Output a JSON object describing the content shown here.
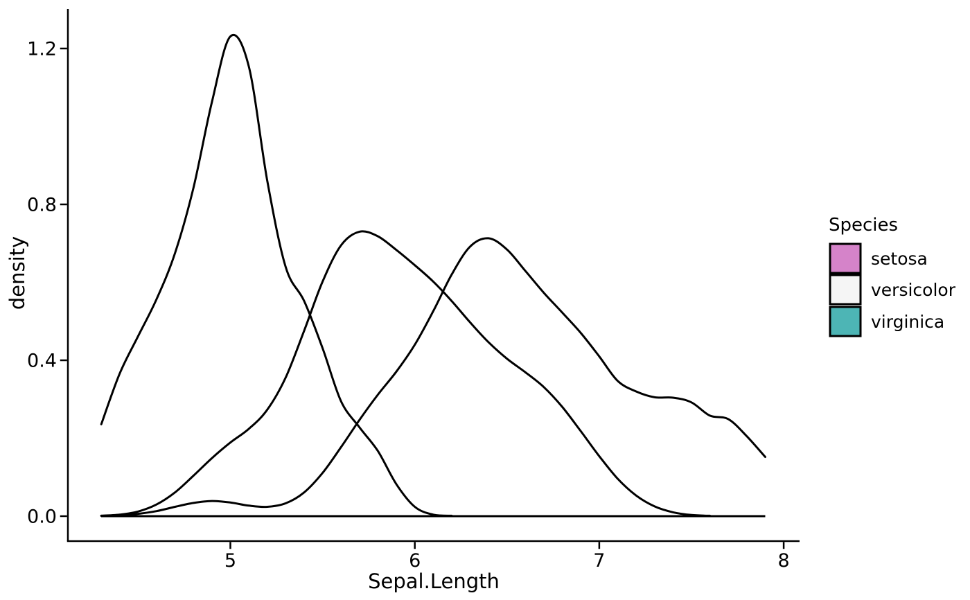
{
  "chart_data": {
    "type": "area",
    "subtype": "kernel-density",
    "title": "",
    "xlabel": "Sepal.Length",
    "ylabel": "density",
    "grid": "off",
    "background": "#ffffff",
    "axis_color": "#000000",
    "xlim": [
      4.119,
      8.086
    ],
    "ylim": [
      -0.064,
      1.301
    ],
    "x_ticks": [
      {
        "value": 5,
        "label": "5"
      },
      {
        "value": 6,
        "label": "6"
      },
      {
        "value": 7,
        "label": "7"
      },
      {
        "value": 8,
        "label": "8"
      }
    ],
    "y_ticks": [
      {
        "value": 0.0,
        "label": "0.0"
      },
      {
        "value": 0.4,
        "label": "0.4"
      },
      {
        "value": 0.8,
        "label": "0.8"
      },
      {
        "value": 1.2,
        "label": "1.2"
      }
    ],
    "outline": {
      "color": "#000000",
      "width": 3
    },
    "fill_alpha": 0.8,
    "legend": {
      "title": "Species",
      "position": "right",
      "entries": [
        {
          "label": "setosa",
          "color": "#D583C9"
        },
        {
          "label": "versicolor",
          "color": "#F5F5F5"
        },
        {
          "label": "virginica",
          "color": "#4DB5B5"
        }
      ]
    },
    "series": [
      {
        "name": "setosa",
        "fill": "rgba(202,100,188,0.8)",
        "x_start": 4.3,
        "x_step": 0.1,
        "densities": [
          0.236,
          0.366,
          0.462,
          0.557,
          0.675,
          0.843,
          1.063,
          1.231,
          1.154,
          0.861,
          0.639,
          0.552,
          0.431,
          0.295,
          0.228,
          0.167,
          0.082,
          0.024,
          0.004,
          0.001
        ]
      },
      {
        "name": "versicolor",
        "fill": "rgba(242,242,242,0.8)",
        "x_start": 4.3,
        "x_step": 0.1,
        "densities": [
          0.001,
          0.004,
          0.012,
          0.03,
          0.061,
          0.104,
          0.149,
          0.189,
          0.224,
          0.273,
          0.356,
          0.476,
          0.602,
          0.695,
          0.73,
          0.718,
          0.683,
          0.644,
          0.602,
          0.552,
          0.497,
          0.446,
          0.404,
          0.369,
          0.331,
          0.28,
          0.218,
          0.154,
          0.096,
          0.053,
          0.025,
          0.01,
          0.003,
          0.001
        ]
      },
      {
        "name": "virginica",
        "fill": "rgba(32,163,163,0.8)",
        "x_start": 4.3,
        "x_step": 0.1,
        "densities": [
          0.001,
          0.002,
          0.006,
          0.013,
          0.024,
          0.034,
          0.039,
          0.035,
          0.027,
          0.024,
          0.033,
          0.061,
          0.111,
          0.177,
          0.247,
          0.312,
          0.371,
          0.44,
          0.526,
          0.62,
          0.692,
          0.713,
          0.684,
          0.629,
          0.573,
          0.522,
          0.47,
          0.41,
          0.347,
          0.32,
          0.305,
          0.304,
          0.292,
          0.258,
          0.249,
          0.205,
          0.152
        ]
      }
    ]
  }
}
